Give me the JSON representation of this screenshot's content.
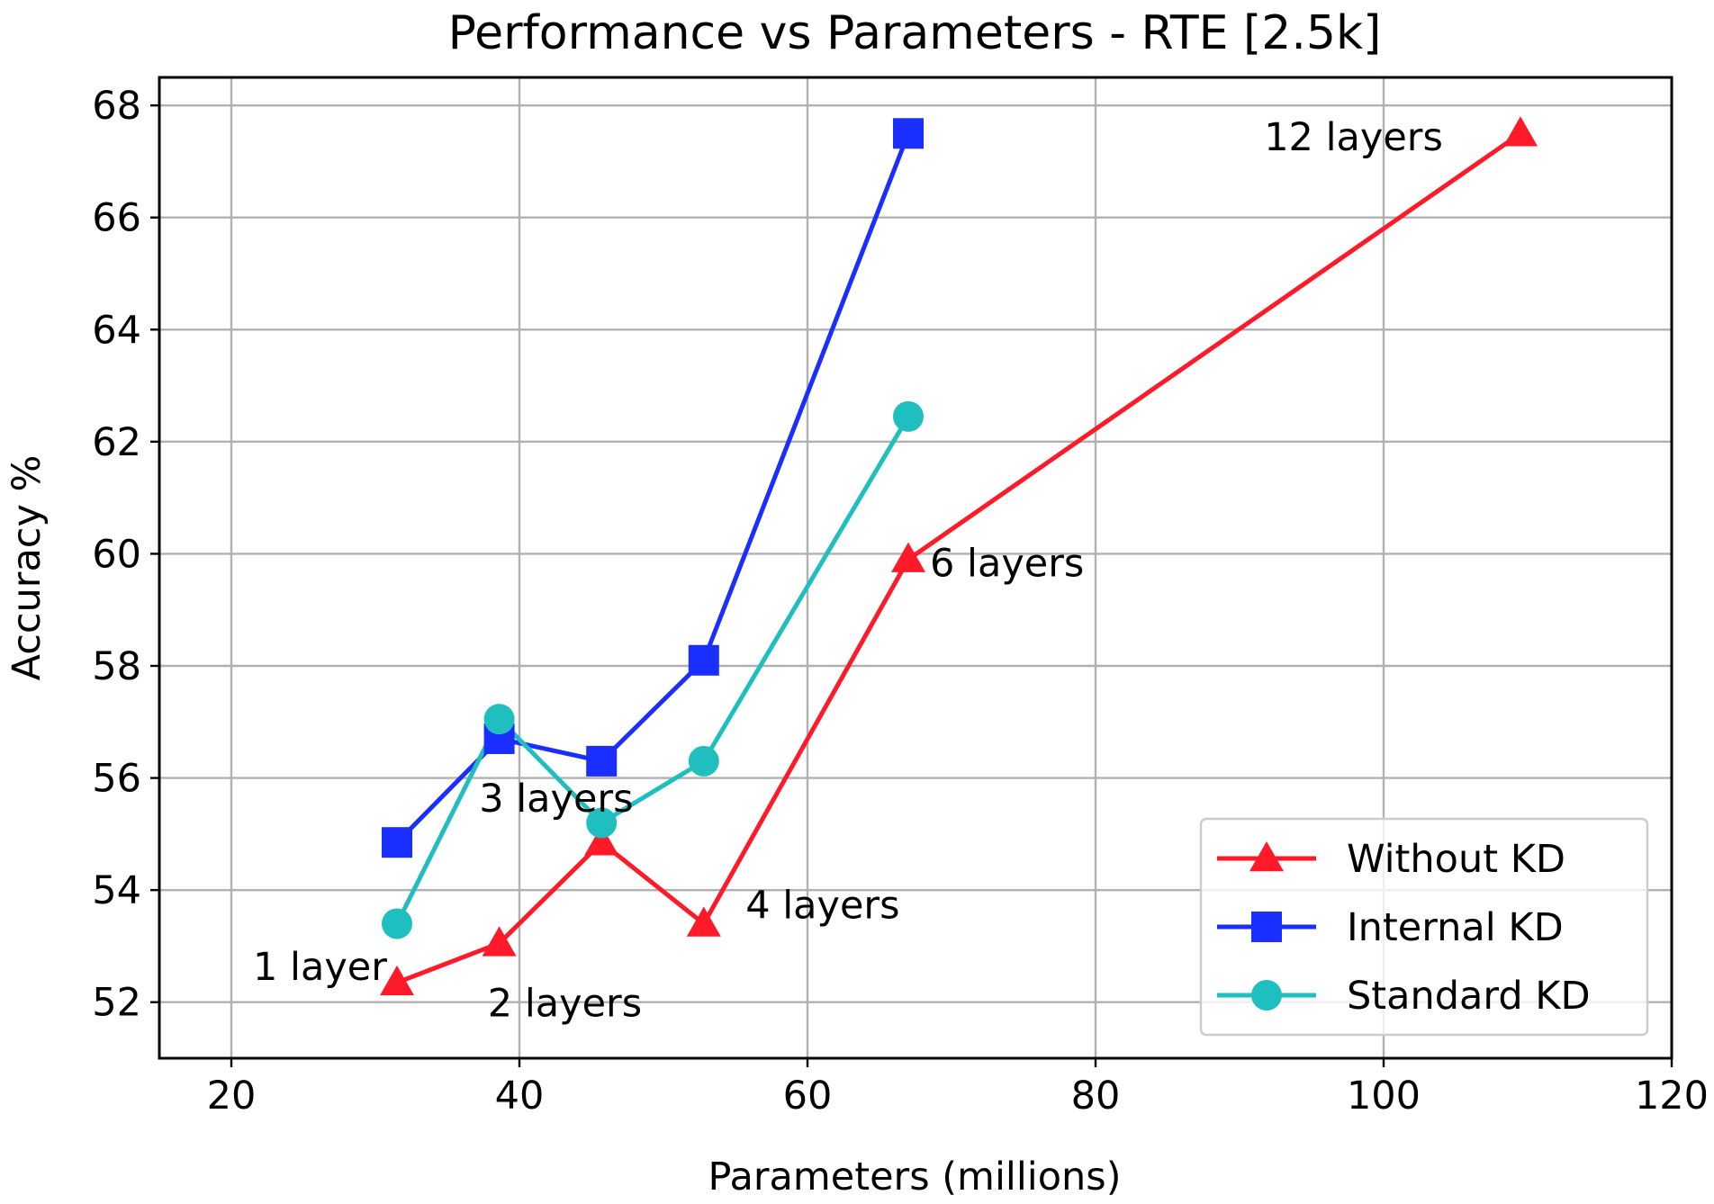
{
  "chart_data": {
    "type": "line",
    "title": "Performance vs Parameters - RTE [2.5k]",
    "xlabel": "Parameters (millions)",
    "ylabel": "Accuracy %",
    "xlim": [
      15,
      120
    ],
    "ylim": [
      51,
      68.5
    ],
    "xticks": [
      20,
      40,
      60,
      80,
      100,
      120
    ],
    "yticks": [
      52,
      54,
      56,
      58,
      60,
      62,
      64,
      66,
      68
    ],
    "grid": true,
    "legend_position": "lower-right",
    "series": [
      {
        "name": "Without KD",
        "color": "#ff1a2a",
        "marker": "triangle",
        "x": [
          31.5,
          38.6,
          45.7,
          52.8,
          67.0,
          109.5
        ],
        "y": [
          52.35,
          53.05,
          54.85,
          53.4,
          59.9,
          67.5
        ]
      },
      {
        "name": "Internal KD",
        "color": "#1a2eff",
        "marker": "square",
        "x": [
          31.5,
          38.6,
          45.7,
          52.8,
          67.0
        ],
        "y": [
          54.85,
          56.7,
          56.3,
          58.1,
          67.5
        ]
      },
      {
        "name": "Standard KD",
        "color": "#1fbfbf",
        "marker": "circle",
        "x": [
          31.5,
          38.6,
          45.7,
          52.8,
          67.0
        ],
        "y": [
          53.4,
          57.05,
          55.2,
          56.3,
          62.45
        ]
      }
    ],
    "annotations": [
      {
        "text": "1 layer",
        "x": 21.5,
        "y": 52.4
      },
      {
        "text": "2 layers",
        "x": 37.8,
        "y": 51.75
      },
      {
        "text": "3 layers",
        "x": 37.2,
        "y": 55.4
      },
      {
        "text": "4 layers",
        "x": 55.7,
        "y": 53.5
      },
      {
        "text": "6 layers",
        "x": 68.5,
        "y": 59.6
      },
      {
        "text": "12 layers",
        "x": 91.7,
        "y": 67.2
      }
    ]
  }
}
